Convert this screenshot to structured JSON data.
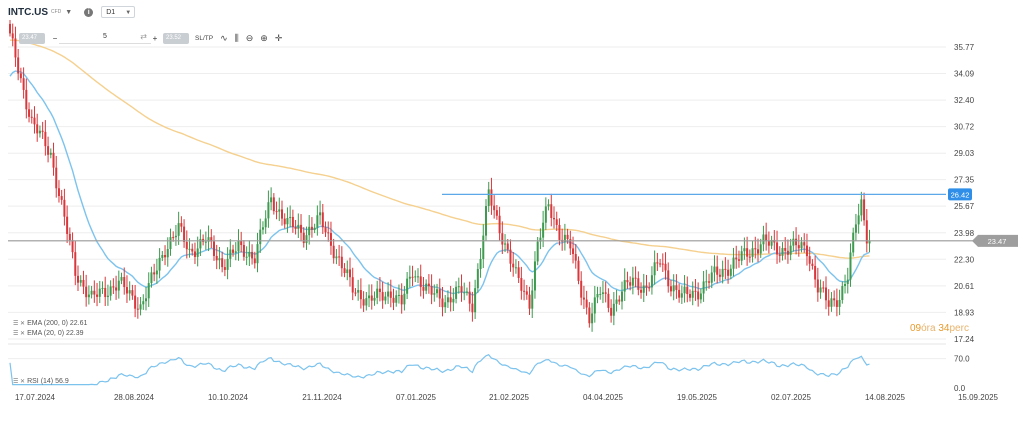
{
  "toolbar": {
    "symbol": "INTC.US",
    "symbol_type": "CFD",
    "info_icon": "info-icon",
    "timeframe": "D1",
    "sell_price": "23.47",
    "buy_price": "23.52",
    "quantity": "5",
    "sltp_label": "SL/TP",
    "icons": [
      "line-chart-icon",
      "candlestick-icon",
      "zoom-out-icon",
      "zoom-in-icon",
      "crosshair-icon"
    ]
  },
  "indicators": {
    "ema200_label": "EMA (200, 0) 22.61",
    "ema20_label": "EMA (20, 0) 22.39",
    "rsi_label": "RSI (14) 56.9"
  },
  "countdown": {
    "hours": "09",
    "hours_unit": "óra",
    "minutes": "34",
    "minutes_unit": "perc"
  },
  "colors": {
    "up": "#3d9a4f",
    "down": "#d8373b",
    "ema20": "#7cc3ee",
    "ema200": "#f5d08e",
    "resistance": "#5da8e8",
    "current_line": "#999999",
    "current_tag": "#9e9e9e",
    "resistance_tag": "#2f8fe8",
    "countdown": "#e89a2c"
  },
  "chart_data": {
    "type": "candlestick",
    "y_ticks": [
      "35.77",
      "34.09",
      "32.40",
      "30.72",
      "29.03",
      "27.35",
      "25.67",
      "23.98",
      "22.30",
      "20.61",
      "18.93",
      "17.24"
    ],
    "y_range": [
      17.24,
      35.77
    ],
    "x_ticks": [
      "17.07.2024",
      "28.08.2024",
      "10.10.2024",
      "21.11.2024",
      "07.01.2025",
      "21.02.2025",
      "04.04.2025",
      "19.05.2025",
      "02.07.2025",
      "14.08.2025",
      "15.09.2025"
    ],
    "current_price": {
      "label": "23.47",
      "value": 23.47
    },
    "resistance": {
      "label": "26.42",
      "value": 26.42
    },
    "rsi_ticks": [
      "70.0",
      "0.0"
    ],
    "anchors": [
      [
        0,
        36.4
      ],
      [
        8,
        31.0
      ],
      [
        15,
        29.0
      ],
      [
        24,
        21.5
      ],
      [
        30,
        19.8
      ],
      [
        40,
        20.8
      ],
      [
        48,
        19.3
      ],
      [
        52,
        20.9
      ],
      [
        57,
        23.0
      ],
      [
        62,
        24.2
      ],
      [
        66,
        22.8
      ],
      [
        72,
        23.5
      ],
      [
        78,
        22.0
      ],
      [
        84,
        23.0
      ],
      [
        90,
        22.5
      ],
      [
        96,
        26.1
      ],
      [
        102,
        24.6
      ],
      [
        108,
        23.9
      ],
      [
        114,
        24.8
      ],
      [
        120,
        22.6
      ],
      [
        126,
        20.4
      ],
      [
        132,
        19.7
      ],
      [
        140,
        20.2
      ],
      [
        144,
        19.5
      ],
      [
        148,
        21.6
      ],
      [
        154,
        20.2
      ],
      [
        160,
        19.7
      ],
      [
        166,
        20.3
      ],
      [
        170,
        19.5
      ],
      [
        173,
        22.6
      ],
      [
        176,
        26.4
      ],
      [
        180,
        24.3
      ],
      [
        186,
        21.2
      ],
      [
        191,
        19.6
      ],
      [
        194,
        23.2
      ],
      [
        198,
        25.7
      ],
      [
        202,
        24.0
      ],
      [
        206,
        23.1
      ],
      [
        210,
        20.3
      ],
      [
        213,
        18.7
      ],
      [
        217,
        20.2
      ],
      [
        221,
        19.2
      ],
      [
        225,
        20.3
      ],
      [
        229,
        20.9
      ],
      [
        234,
        20.5
      ],
      [
        239,
        22.2
      ],
      [
        243,
        20.7
      ],
      [
        247,
        19.9
      ],
      [
        253,
        20.3
      ],
      [
        259,
        21.3
      ],
      [
        265,
        21.9
      ],
      [
        271,
        22.7
      ],
      [
        277,
        23.4
      ],
      [
        283,
        22.9
      ],
      [
        289,
        23.1
      ],
      [
        293,
        23.0
      ],
      [
        297,
        20.5
      ],
      [
        301,
        19.4
      ],
      [
        305,
        20.0
      ],
      [
        308,
        21.2
      ],
      [
        311,
        24.6
      ],
      [
        313,
        25.9
      ],
      [
        315,
        23.9
      ],
      [
        316,
        23.47
      ]
    ],
    "ema200_range": [
      22.61
    ],
    "ema20_last": 22.39,
    "rsi_last": 56.9
  }
}
